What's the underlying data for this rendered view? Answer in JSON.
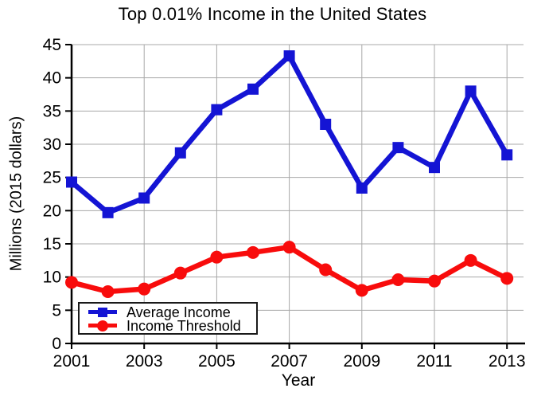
{
  "chart_data": {
    "type": "line",
    "title": "Top 0.01% Income in the United States",
    "xlabel": "Year",
    "ylabel": "Millions (2015 dollars)",
    "x": [
      2001,
      2002,
      2003,
      2004,
      2005,
      2006,
      2007,
      2008,
      2009,
      2010,
      2011,
      2012,
      2013
    ],
    "series": [
      {
        "name": "Average Income",
        "marker": "square",
        "color": "#1414d4",
        "values": [
          24.3,
          19.7,
          21.9,
          28.7,
          35.2,
          38.3,
          43.3,
          33.0,
          23.4,
          29.5,
          26.5,
          38.0,
          28.4
        ]
      },
      {
        "name": "Income Threshold",
        "marker": "circle",
        "color": "#f80c0c",
        "values": [
          9.2,
          7.8,
          8.2,
          10.6,
          13.0,
          13.7,
          14.5,
          11.1,
          8.0,
          9.6,
          9.4,
          12.5,
          9.8
        ]
      }
    ],
    "xticks": [
      2001,
      2003,
      2005,
      2007,
      2009,
      2011,
      2013
    ],
    "yticks": [
      0,
      5,
      10,
      15,
      20,
      25,
      30,
      35,
      40,
      45
    ],
    "xlim": [
      2001,
      2013.5
    ],
    "ylim": [
      0,
      45
    ],
    "grid": true,
    "legend_position": "lower left",
    "grid_color": "#a8a8a8",
    "axis_color": "#000000"
  }
}
